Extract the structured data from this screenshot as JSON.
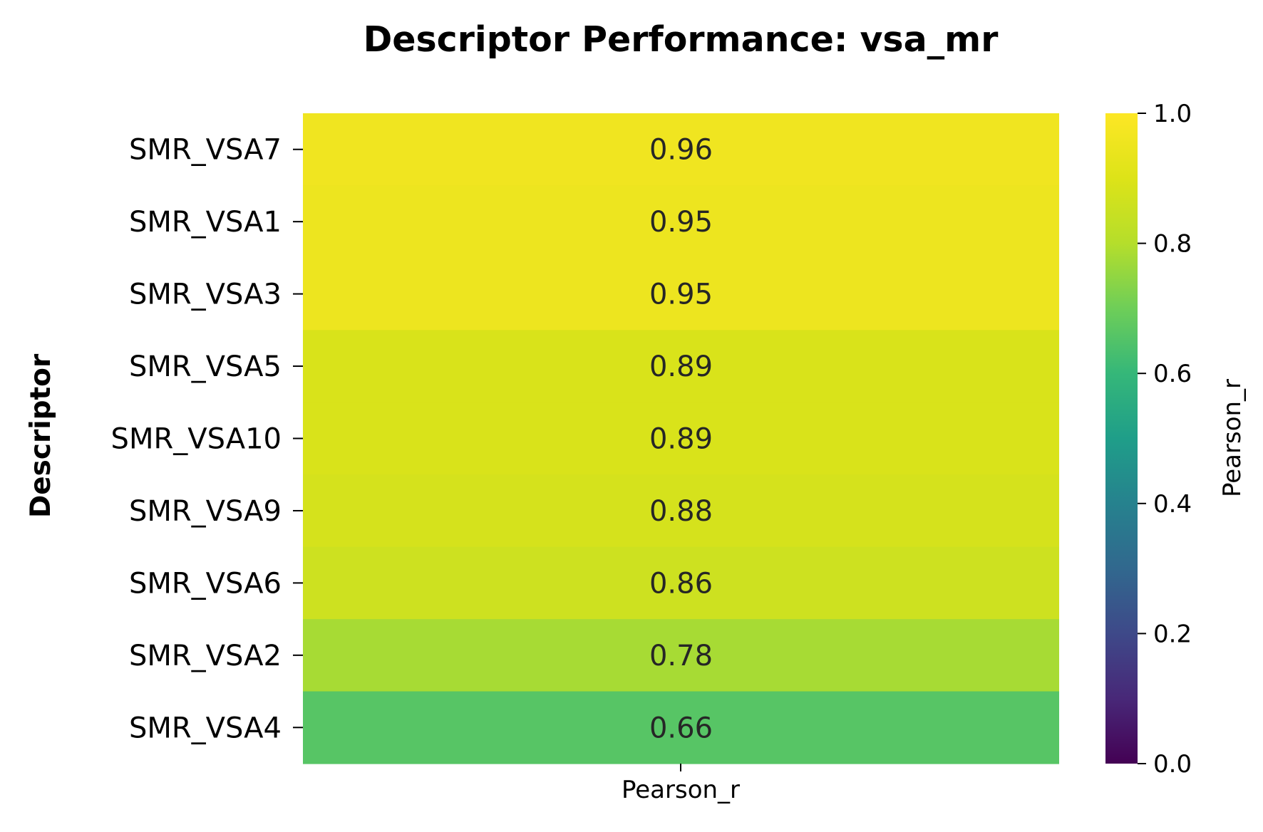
{
  "chart_data": {
    "type": "heatmap",
    "title": "Descriptor Performance: vsa_mr",
    "ylabel": "Descriptor",
    "xlabel": "",
    "columns": [
      "Pearson_r"
    ],
    "rows": [
      {
        "label": "SMR_VSA7",
        "value": 0.96,
        "text": "0.96"
      },
      {
        "label": "SMR_VSA1",
        "value": 0.95,
        "text": "0.95"
      },
      {
        "label": "SMR_VSA3",
        "value": 0.95,
        "text": "0.95"
      },
      {
        "label": "SMR_VSA5",
        "value": 0.89,
        "text": "0.89"
      },
      {
        "label": "SMR_VSA10",
        "value": 0.89,
        "text": "0.89"
      },
      {
        "label": "SMR_VSA9",
        "value": 0.88,
        "text": "0.88"
      },
      {
        "label": "SMR_VSA6",
        "value": 0.86,
        "text": "0.86"
      },
      {
        "label": "SMR_VSA2",
        "value": 0.78,
        "text": "0.78"
      },
      {
        "label": "SMR_VSA4",
        "value": 0.66,
        "text": "0.66"
      }
    ],
    "colorbar": {
      "label": "Pearson_r",
      "colormap": "viridis",
      "range": [
        0.0,
        1.0
      ],
      "ticks": [
        "0.0",
        "0.2",
        "0.4",
        "0.6",
        "0.8",
        "1.0"
      ]
    },
    "grid": false,
    "legend": "colorbar-right"
  }
}
